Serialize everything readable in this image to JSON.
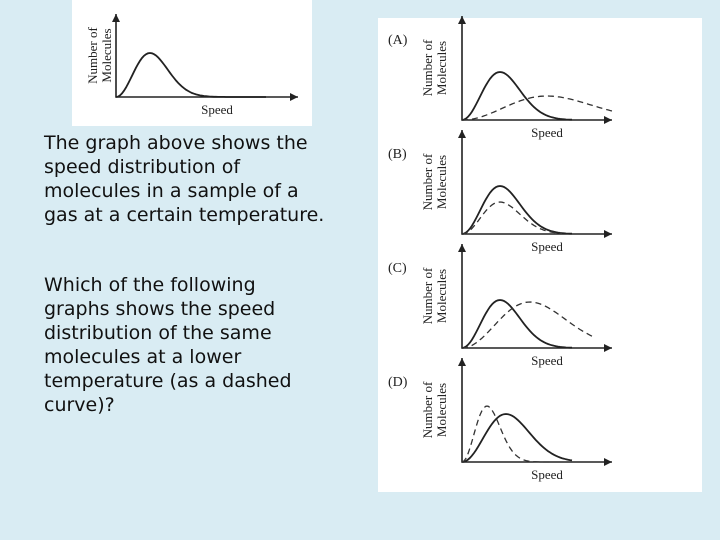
{
  "intro_graph": {
    "y_label": [
      "Number of",
      "Molecules"
    ],
    "x_label": "Speed"
  },
  "question": {
    "paragraphs": [
      [
        "The graph above shows the",
        "speed distribution of",
        "molecules in a sample of a",
        "gas at a certain temperature."
      ],
      [
        "Which of the following",
        "graphs shows the speed",
        "distribution of the same",
        "molecules at a lower",
        "temperature (as a dashed",
        "curve)?"
      ]
    ]
  },
  "options": [
    {
      "label": "(A)",
      "y_label": [
        "Number of",
        "Molecules"
      ],
      "x_label": "Speed"
    },
    {
      "label": "(B)",
      "y_label": [
        "Number of",
        "Molecules"
      ],
      "x_label": "Speed"
    },
    {
      "label": "(C)",
      "y_label": [
        "Number of",
        "Molecules"
      ],
      "x_label": "Speed"
    },
    {
      "label": "(D)",
      "y_label": [
        "Number of",
        "Molecules"
      ],
      "x_label": "Speed"
    }
  ]
}
